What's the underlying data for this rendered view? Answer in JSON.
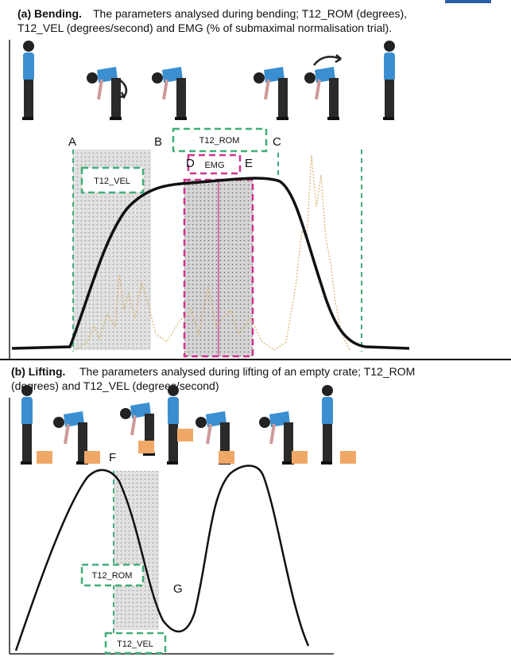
{
  "panel_a": {
    "heading": "(a) Bending.",
    "caption_lines": [
      "The parameters analysed during bending; T12_ROM (degrees),",
      "T12_VEL (degrees/second) and EMG (% of submaximal normalisation trial)."
    ],
    "labels": {
      "A": "A",
      "B": "B",
      "C": "C",
      "D": "D",
      "E": "E"
    },
    "boxes": {
      "rom": "T12_ROM",
      "vel": "T12_VEL",
      "emg": "EMG"
    }
  },
  "panel_b": {
    "heading": "(b) Lifting.",
    "caption_lines": [
      "The parameters analysed during lifting of an empty crate; T12_ROM",
      "(degrees) and T12_VEL (degrees/second)"
    ],
    "labels": {
      "F": "F",
      "G": "G"
    },
    "boxes": {
      "rom": "T12_ROM",
      "vel": "T12_VEL"
    }
  }
}
